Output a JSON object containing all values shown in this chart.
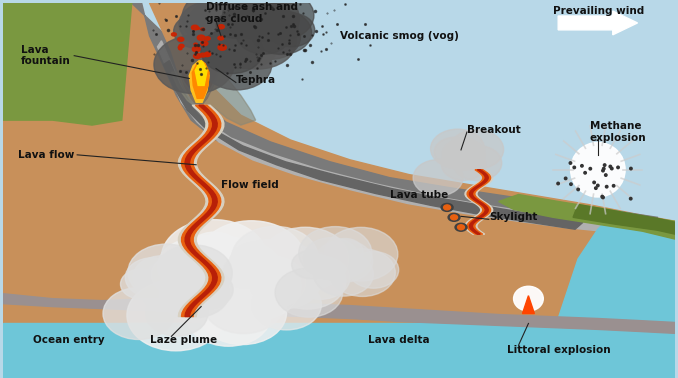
{
  "sky_color": "#b8d8e8",
  "ocean_color": "#6ec6d8",
  "terrain_brown_light": "#c8905a",
  "terrain_brown_dark": "#a06840",
  "lava_flow_gray": "#909090",
  "lava_flow_dark_gray": "#686868",
  "lava_tube_dark": "#585858",
  "lava_orange": "#e86010",
  "lava_red": "#b82008",
  "lava_white": "#e8d8c0",
  "green_veg": "#7a9840",
  "green_veg2": "#5a7828",
  "smoke_white": "#e8e8e8",
  "smoke_gray": "#b0b0b0",
  "ash_dark": "#303030",
  "cone_dark": "#705040",
  "flame_yellow": "#ffc020",
  "flame_orange": "#ff6800",
  "labels": {
    "lava_fountain": "Lava\nfountain",
    "diffuse_ash": "Diffuse ash and\ngas cloud",
    "tephra": "Tephra",
    "volcanic_smog": "Volcanic smog (vog)",
    "prevailing_wind": "Prevailing wind",
    "lava_flow": "Lava flow",
    "breakout": "Breakout",
    "methane_explosion": "Methane\nexplosion",
    "flow_field": "Flow field",
    "lava_tube": "Lava tube",
    "skylight": "Skylight",
    "ocean_entry": "Ocean entry",
    "laze_plume": "Laze plume",
    "lava_delta": "Lava delta",
    "littoral_explosion": "Littoral explosion"
  }
}
